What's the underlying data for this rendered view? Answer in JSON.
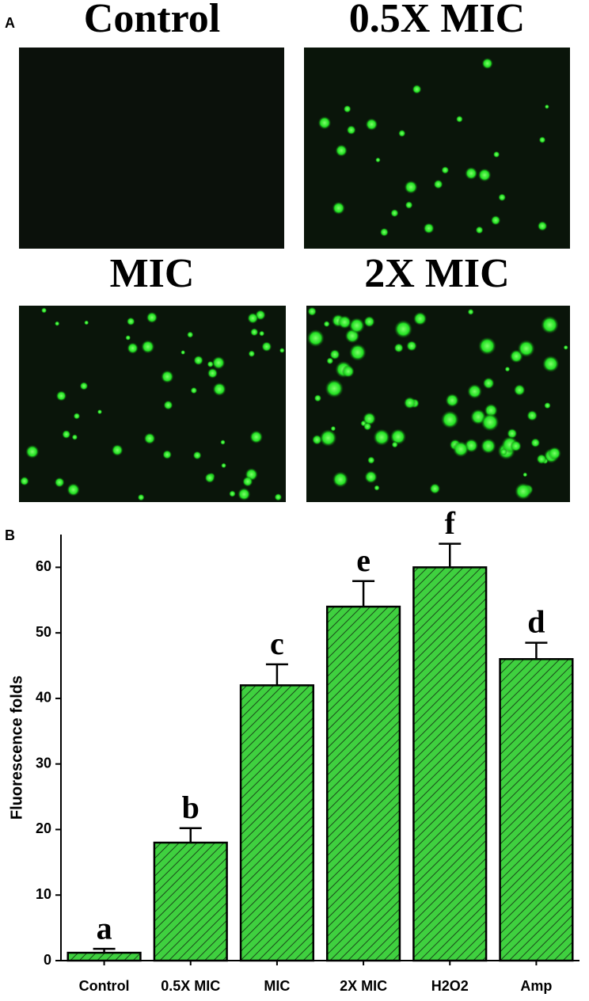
{
  "panel_a": {
    "label": "A",
    "images": [
      {
        "title": "Control"
      },
      {
        "title": "0.5X MIC"
      },
      {
        "title": "MIC"
      },
      {
        "title": "2X MIC"
      }
    ]
  },
  "chart_data": {
    "type": "bar",
    "panel_label": "B",
    "y_label": "Fluorescence folds",
    "categories": [
      "Control",
      "0.5X MIC",
      "MIC",
      "2X MIC",
      "H2O2",
      "Amp"
    ],
    "values": [
      1.2,
      18,
      42,
      54,
      60,
      46
    ],
    "errors": [
      0.6,
      2.2,
      3.2,
      3.9,
      3.6,
      2.5
    ],
    "annotations": [
      "a",
      "b",
      "c",
      "e",
      "f",
      "d"
    ],
    "color": "#3fd03f",
    "ylim": [
      0,
      65
    ],
    "yticks": [
      0,
      10,
      20,
      30,
      40,
      50,
      60
    ]
  }
}
